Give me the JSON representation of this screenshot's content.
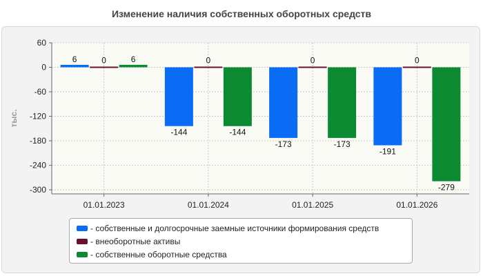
{
  "chart_data": {
    "type": "bar",
    "title": "Изменение наличия собственных оборотных средств",
    "ylabel": "тыс.",
    "categories": [
      "01.01.2023",
      "01.01.2024",
      "01.01.2025",
      "01.01.2026"
    ],
    "ylim": [
      -310,
      60
    ],
    "yticks": [
      60,
      0,
      -60,
      -120,
      -180,
      -240,
      -300
    ],
    "grid": true,
    "legend_position": "bottom",
    "series": [
      {
        "name": "- собственные и долгосрочные заемные источники формирования средств",
        "color": "#0a6cf5",
        "values": [
          6,
          -144,
          -173,
          -191
        ],
        "labels": [
          "6",
          "-144",
          "-173",
          "-191"
        ]
      },
      {
        "name": "- внеоборотные активы",
        "color": "#6b0f2e",
        "values": [
          0,
          0,
          0,
          0
        ],
        "labels": [
          "0",
          "0",
          "0",
          "0"
        ]
      },
      {
        "name": "- собственные оборотные средства",
        "color": "#0c8a32",
        "values": [
          6,
          -144,
          -173,
          -279
        ],
        "labels": [
          "6",
          "-144",
          "-173",
          "-279"
        ]
      }
    ]
  }
}
